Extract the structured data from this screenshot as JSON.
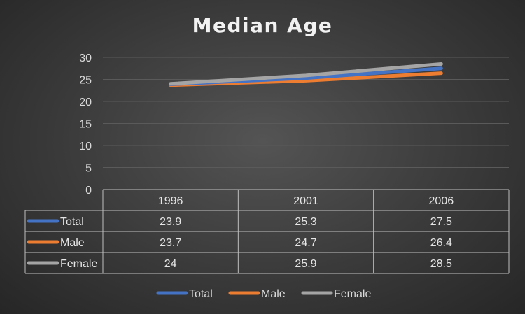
{
  "chart_data": {
    "type": "line",
    "title": "Median Age",
    "categories": [
      "1996",
      "2001",
      "2006"
    ],
    "series": [
      {
        "name": "Total",
        "values": [
          23.9,
          25.3,
          27.5
        ]
      },
      {
        "name": "Male",
        "values": [
          23.7,
          24.7,
          26.4
        ]
      },
      {
        "name": "Female",
        "values": [
          24,
          25.9,
          28.5
        ]
      }
    ],
    "value_labels": [
      [
        "23.9",
        "25.3",
        "27.5"
      ],
      [
        "23.7",
        "24.7",
        "26.4"
      ],
      [
        "24",
        "25.9",
        "28.5"
      ]
    ],
    "yticks": [
      "0",
      "5",
      "10",
      "15",
      "20",
      "25",
      "30"
    ],
    "ylim": [
      0,
      30
    ],
    "grid": true,
    "legend": "bottom",
    "data_table": true
  },
  "colors": {
    "Total": "#4472c4",
    "Male": "#ed7d31",
    "Female": "#a5a5a5"
  }
}
